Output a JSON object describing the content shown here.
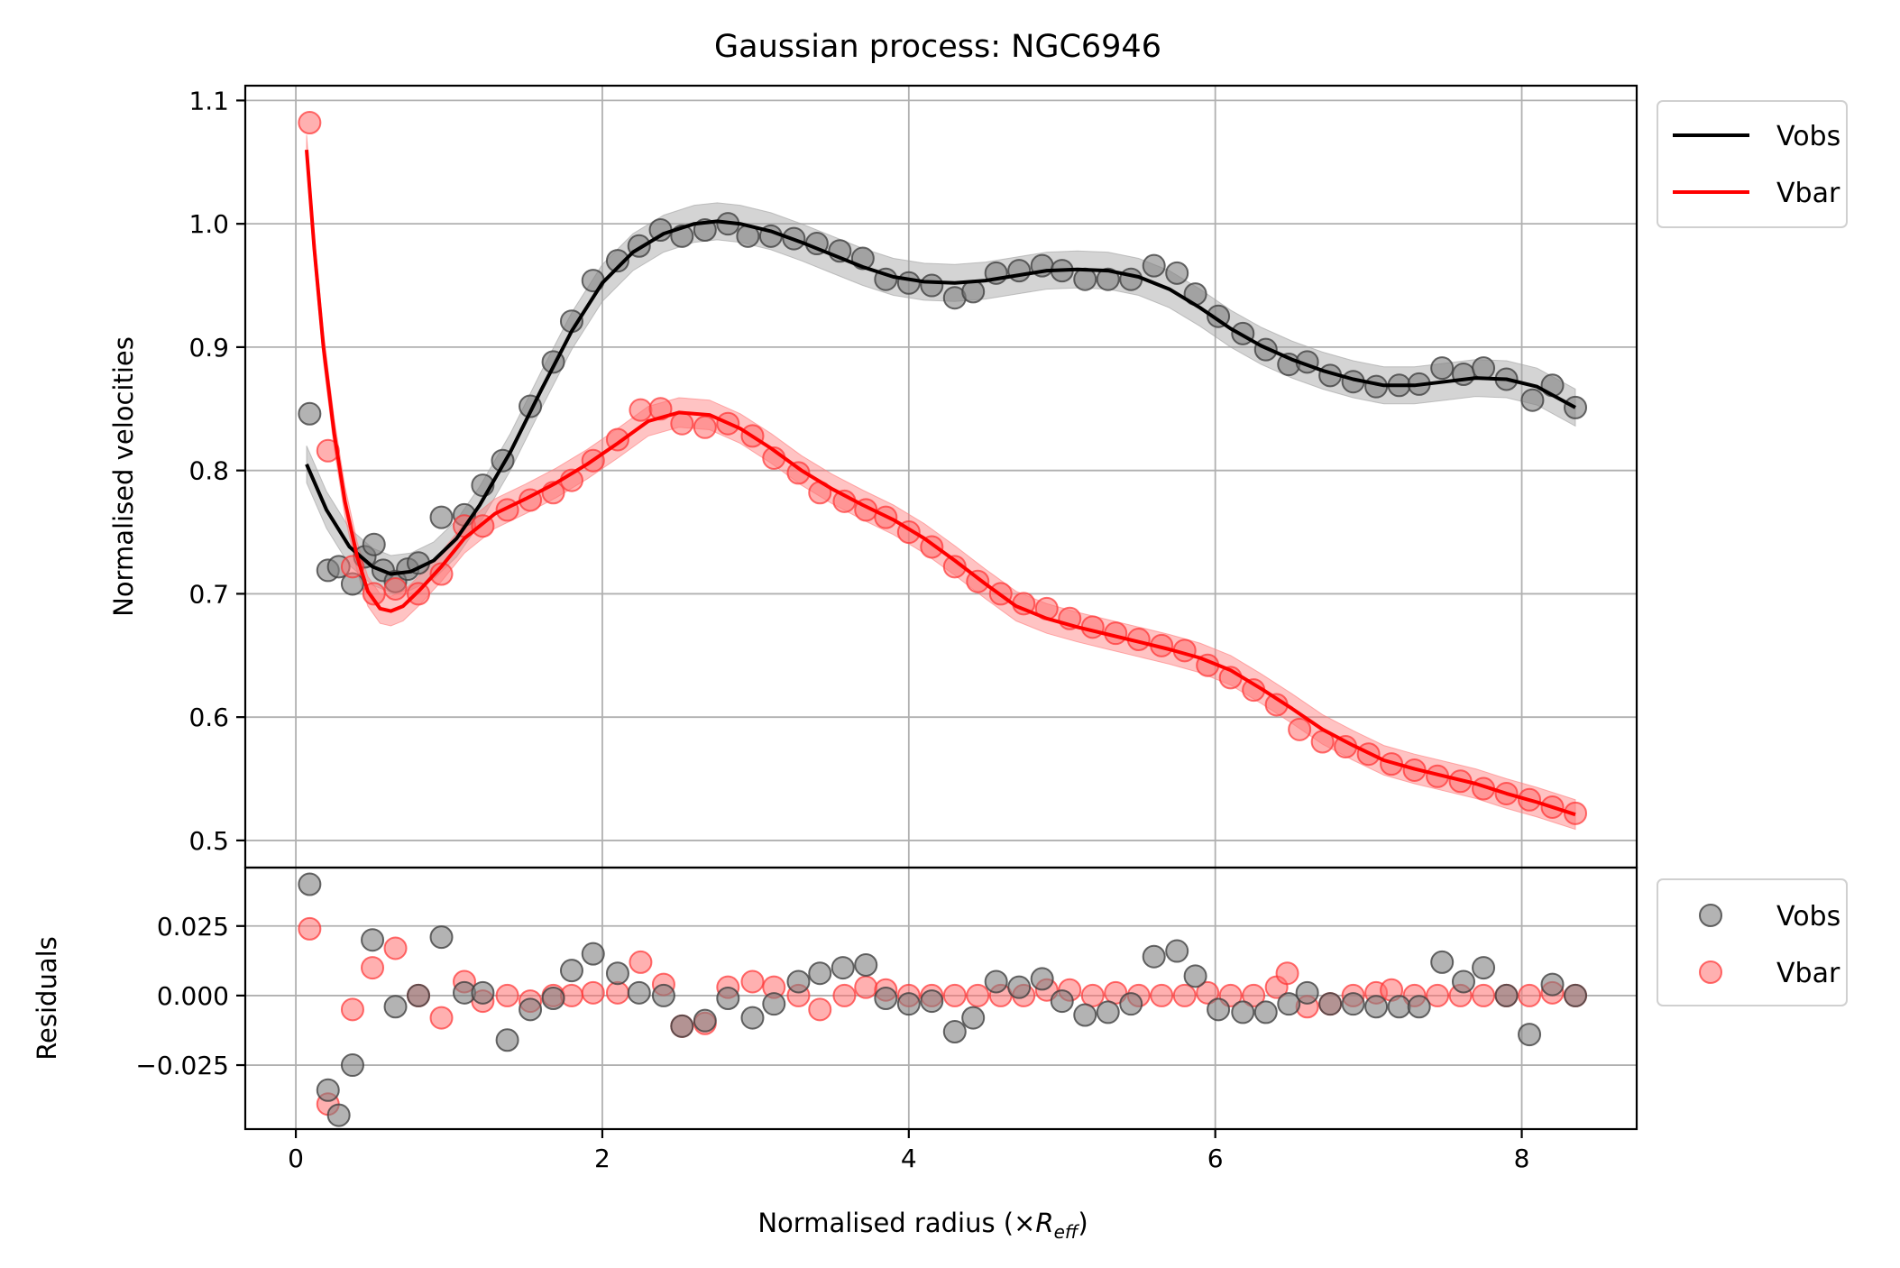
{
  "chart_data": [
    {
      "type": "line",
      "panel": "main",
      "title": "Gaussian process: NGC6946",
      "xlabel": "",
      "ylabel": "Normalised velocities",
      "xlim": [
        -0.33,
        8.75
      ],
      "ylim": [
        0.478,
        1.112
      ],
      "xticks": [
        0,
        2,
        4,
        6,
        8
      ],
      "yticks": [
        0.5,
        0.6,
        0.7,
        0.8,
        0.9,
        1.0,
        1.1
      ],
      "ytick_labels": [
        "0.5",
        "0.6",
        "0.7",
        "0.8",
        "0.9",
        "1.0",
        "1.1"
      ],
      "grid": true,
      "legend_position": "outside-upper-right",
      "series": [
        {
          "name": "Vobs",
          "color": "#000000",
          "band_color": "#a0a0a0",
          "band_halfwidth": 0.015,
          "curve": {
            "x": [
              0.07,
              0.2,
              0.35,
              0.5,
              0.62,
              0.75,
              0.9,
              1.05,
              1.2,
              1.4,
              1.6,
              1.8,
              2.0,
              2.2,
              2.4,
              2.6,
              2.75,
              2.9,
              3.1,
              3.3,
              3.5,
              3.7,
              3.9,
              4.1,
              4.3,
              4.5,
              4.7,
              4.9,
              5.1,
              5.3,
              5.5,
              5.7,
              5.9,
              6.1,
              6.3,
              6.5,
              6.7,
              6.9,
              7.1,
              7.3,
              7.5,
              7.7,
              7.9,
              8.1,
              8.35
            ],
            "y": [
              0.805,
              0.768,
              0.738,
              0.722,
              0.716,
              0.718,
              0.727,
              0.745,
              0.772,
              0.815,
              0.865,
              0.913,
              0.952,
              0.977,
              0.992,
              1.0,
              1.002,
              1.0,
              0.994,
              0.985,
              0.975,
              0.965,
              0.957,
              0.953,
              0.952,
              0.954,
              0.958,
              0.962,
              0.963,
              0.962,
              0.957,
              0.947,
              0.932,
              0.915,
              0.901,
              0.89,
              0.881,
              0.874,
              0.869,
              0.869,
              0.872,
              0.875,
              0.874,
              0.868,
              0.851
            ]
          },
          "points": {
            "x": [
              0.09,
              0.21,
              0.28,
              0.37,
              0.45,
              0.51,
              0.57,
              0.65,
              0.73,
              0.8,
              0.95,
              1.1,
              1.22,
              1.35,
              1.53,
              1.68,
              1.8,
              1.94,
              2.1,
              2.24,
              2.38,
              2.52,
              2.67,
              2.82,
              2.95,
              3.1,
              3.25,
              3.4,
              3.55,
              3.7,
              3.85,
              4.0,
              4.15,
              4.3,
              4.42,
              4.57,
              4.72,
              4.87,
              5.0,
              5.15,
              5.3,
              5.45,
              5.6,
              5.75,
              5.87,
              6.02,
              6.18,
              6.33,
              6.48,
              6.6,
              6.75,
              6.9,
              7.05,
              7.2,
              7.33,
              7.48,
              7.62,
              7.75,
              7.9,
              8.07,
              8.2,
              8.35
            ],
            "y": [
              0.846,
              0.719,
              0.722,
              0.708,
              0.73,
              0.74,
              0.719,
              0.71,
              0.72,
              0.725,
              0.762,
              0.764,
              0.788,
              0.808,
              0.852,
              0.888,
              0.921,
              0.954,
              0.97,
              0.982,
              0.995,
              0.99,
              0.995,
              1.0,
              0.99,
              0.99,
              0.988,
              0.984,
              0.978,
              0.972,
              0.955,
              0.952,
              0.95,
              0.94,
              0.945,
              0.96,
              0.962,
              0.966,
              0.962,
              0.955,
              0.955,
              0.955,
              0.966,
              0.96,
              0.943,
              0.925,
              0.911,
              0.898,
              0.886,
              0.888,
              0.877,
              0.872,
              0.868,
              0.869,
              0.87,
              0.883,
              0.878,
              0.883,
              0.874,
              0.857,
              0.869,
              0.851
            ]
          }
        },
        {
          "name": "Vbar",
          "color": "#ff0000",
          "band_color": "#ff7a7a",
          "band_halfwidth": 0.012,
          "curve": {
            "x": [
              0.07,
              0.12,
              0.18,
              0.25,
              0.32,
              0.4,
              0.47,
              0.55,
              0.62,
              0.7,
              0.8,
              0.95,
              1.1,
              1.3,
              1.5,
              1.7,
              1.9,
              2.1,
              2.3,
              2.5,
              2.7,
              2.9,
              3.1,
              3.3,
              3.5,
              3.7,
              3.9,
              4.1,
              4.3,
              4.5,
              4.7,
              4.9,
              5.1,
              5.3,
              5.5,
              5.7,
              5.9,
              6.1,
              6.3,
              6.5,
              6.7,
              6.9,
              7.1,
              7.3,
              7.5,
              7.7,
              7.9,
              8.1,
              8.35
            ],
            "y": [
              1.06,
              0.98,
              0.9,
              0.83,
              0.775,
              0.73,
              0.702,
              0.688,
              0.686,
              0.69,
              0.702,
              0.722,
              0.745,
              0.765,
              0.777,
              0.79,
              0.805,
              0.822,
              0.84,
              0.847,
              0.845,
              0.834,
              0.818,
              0.8,
              0.785,
              0.772,
              0.76,
              0.745,
              0.727,
              0.708,
              0.69,
              0.68,
              0.673,
              0.667,
              0.661,
              0.655,
              0.648,
              0.638,
              0.623,
              0.607,
              0.59,
              0.577,
              0.565,
              0.558,
              0.552,
              0.546,
              0.538,
              0.531,
              0.521
            ]
          },
          "points": {
            "x": [
              0.09,
              0.21,
              0.37,
              0.51,
              0.65,
              0.8,
              0.95,
              1.1,
              1.22,
              1.38,
              1.53,
              1.68,
              1.8,
              1.94,
              2.1,
              2.25,
              2.38,
              2.52,
              2.67,
              2.82,
              2.98,
              3.12,
              3.28,
              3.42,
              3.58,
              3.72,
              3.85,
              4.0,
              4.15,
              4.3,
              4.45,
              4.6,
              4.75,
              4.9,
              5.05,
              5.2,
              5.35,
              5.5,
              5.65,
              5.8,
              5.95,
              6.1,
              6.25,
              6.4,
              6.55,
              6.7,
              6.85,
              7.0,
              7.15,
              7.3,
              7.45,
              7.6,
              7.75,
              7.9,
              8.05,
              8.2,
              8.35
            ],
            "y": [
              1.082,
              0.816,
              0.722,
              0.7,
              0.704,
              0.7,
              0.716,
              0.755,
              0.755,
              0.768,
              0.776,
              0.782,
              0.792,
              0.808,
              0.825,
              0.849,
              0.85,
              0.838,
              0.835,
              0.838,
              0.828,
              0.81,
              0.798,
              0.782,
              0.775,
              0.768,
              0.762,
              0.75,
              0.738,
              0.722,
              0.71,
              0.7,
              0.692,
              0.688,
              0.68,
              0.673,
              0.668,
              0.663,
              0.658,
              0.654,
              0.642,
              0.632,
              0.622,
              0.61,
              0.59,
              0.58,
              0.576,
              0.57,
              0.562,
              0.557,
              0.552,
              0.548,
              0.542,
              0.538,
              0.533,
              0.527,
              0.522
            ]
          }
        }
      ]
    },
    {
      "type": "scatter",
      "panel": "residuals",
      "title": "",
      "xlabel": "Normalised radius (×",
      "xlabel_symbol": "R",
      "xlabel_subscript": "eff",
      "xlabel_end": ")",
      "ylabel": "Residuals",
      "xlim": [
        -0.33,
        8.75
      ],
      "ylim": [
        -0.048,
        0.046
      ],
      "xticks": [
        0,
        2,
        4,
        6,
        8
      ],
      "xtick_labels": [
        "0",
        "2",
        "4",
        "6",
        "8"
      ],
      "yticks": [
        -0.025,
        0.0,
        0.025
      ],
      "ytick_labels": [
        "−0.025",
        "0.000",
        "0.025"
      ],
      "grid": true,
      "legend_position": "outside-upper-right",
      "series": [
        {
          "name": "Vobs",
          "color": "#808080",
          "edge_color": "#404040",
          "x": [
            0.09,
            0.21,
            0.28,
            0.37,
            0.5,
            0.65,
            0.8,
            0.95,
            1.1,
            1.22,
            1.38,
            1.53,
            1.68,
            1.8,
            1.94,
            2.1,
            2.24,
            2.4,
            2.52,
            2.67,
            2.82,
            2.98,
            3.12,
            3.28,
            3.42,
            3.57,
            3.72,
            3.85,
            4.0,
            4.15,
            4.3,
            4.42,
            4.57,
            4.72,
            4.87,
            5.0,
            5.15,
            5.3,
            5.45,
            5.6,
            5.75,
            5.87,
            6.02,
            6.18,
            6.33,
            6.48,
            6.6,
            6.75,
            6.9,
            7.05,
            7.2,
            7.33,
            7.48,
            7.62,
            7.75,
            7.9,
            8.05,
            8.2,
            8.35
          ],
          "y": [
            0.04,
            -0.034,
            -0.043,
            -0.025,
            0.02,
            -0.004,
            0.0,
            0.021,
            0.001,
            0.001,
            -0.016,
            -0.005,
            -0.001,
            0.009,
            0.015,
            0.008,
            0.001,
            0.0,
            -0.011,
            -0.009,
            -0.001,
            -0.008,
            -0.003,
            0.005,
            0.008,
            0.01,
            0.011,
            -0.001,
            -0.003,
            -0.002,
            -0.013,
            -0.008,
            0.005,
            0.003,
            0.006,
            -0.002,
            -0.007,
            -0.006,
            -0.003,
            0.014,
            0.016,
            0.007,
            -0.005,
            -0.006,
            -0.006,
            -0.003,
            0.001,
            -0.003,
            -0.003,
            -0.004,
            -0.004,
            -0.004,
            0.012,
            0.005,
            0.01,
            0.0,
            -0.014,
            0.004,
            0.0
          ]
        },
        {
          "name": "Vbar",
          "color": "#ff7070",
          "edge_color": "#ff3030",
          "x": [
            0.09,
            0.21,
            0.37,
            0.5,
            0.65,
            0.8,
            0.95,
            1.1,
            1.22,
            1.38,
            1.53,
            1.68,
            1.8,
            1.94,
            2.1,
            2.25,
            2.4,
            2.52,
            2.67,
            2.82,
            2.98,
            3.12,
            3.28,
            3.42,
            3.58,
            3.72,
            3.85,
            4.0,
            4.15,
            4.3,
            4.45,
            4.6,
            4.75,
            4.9,
            5.05,
            5.2,
            5.35,
            5.5,
            5.65,
            5.8,
            5.95,
            6.1,
            6.25,
            6.4,
            6.47,
            6.6,
            6.75,
            6.9,
            7.05,
            7.15,
            7.3,
            7.45,
            7.6,
            7.75,
            7.9,
            8.05,
            8.2,
            8.35
          ],
          "y": [
            0.024,
            -0.039,
            -0.005,
            0.01,
            0.017,
            0.0,
            -0.008,
            0.005,
            -0.002,
            0.0,
            -0.002,
            0.0,
            0.0,
            0.001,
            0.001,
            0.012,
            0.004,
            -0.011,
            -0.01,
            0.003,
            0.005,
            0.003,
            0.0,
            -0.005,
            0.0,
            0.003,
            0.002,
            0.0,
            0.0,
            0.0,
            0.0,
            0.0,
            0.0,
            0.002,
            0.002,
            0.0,
            0.001,
            0.0,
            0.0,
            0.0,
            0.001,
            0.0,
            0.0,
            0.003,
            0.008,
            -0.004,
            -0.003,
            0.0,
            0.001,
            0.002,
            0.0,
            0.0,
            0.0,
            0.0,
            0.0,
            0.0,
            0.001,
            0.0
          ]
        }
      ]
    }
  ]
}
